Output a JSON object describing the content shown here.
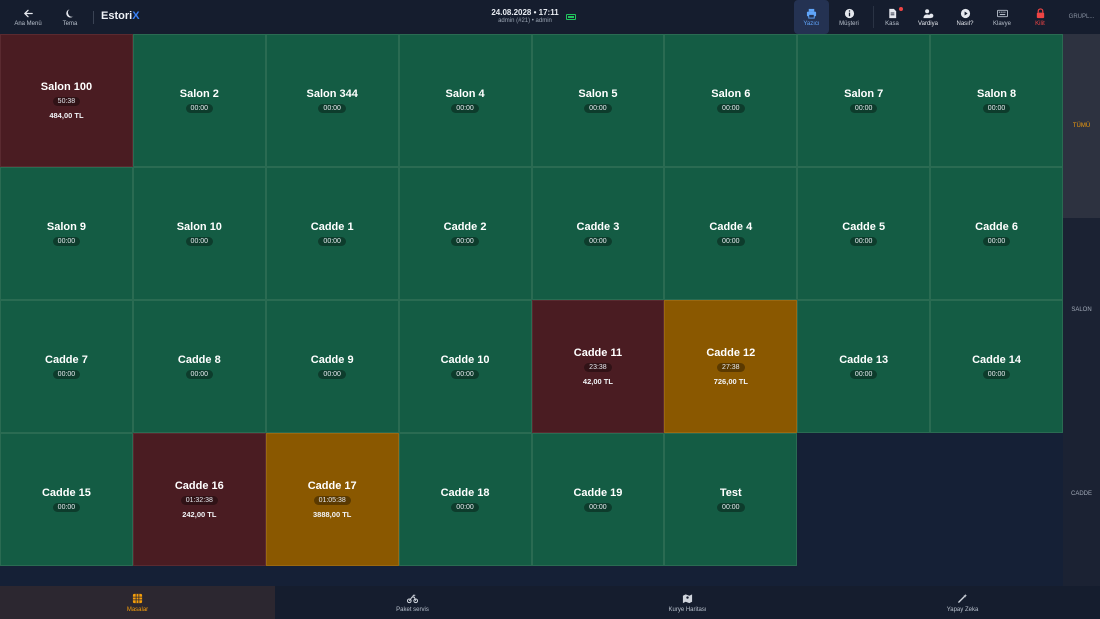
{
  "header": {
    "back_label": "Ana Menü",
    "theme_label": "Tema",
    "logo_main": "Estori",
    "logo_accent": "X",
    "datetime": "24.08.2028 • 17:11",
    "user": "admin (#21) • admin",
    "actions": {
      "yazici": "Yazıcı",
      "musteri": "Müşteri",
      "kasa": "Kasa",
      "vardiya": "Vardiya",
      "nasil": "Nasıl?",
      "klavye": "Klavye",
      "kilit": "Kilit"
    },
    "groups_label": "GRUPL..."
  },
  "tables": [
    {
      "name": "Salon 100",
      "time": "50:38",
      "amount": "484,00 TL",
      "status": "red"
    },
    {
      "name": "Salon 2",
      "time": "00:00",
      "status": "green"
    },
    {
      "name": "Salon 344",
      "time": "00:00",
      "status": "green"
    },
    {
      "name": "Salon 4",
      "time": "00:00",
      "status": "green"
    },
    {
      "name": "Salon 5",
      "time": "00:00",
      "status": "green"
    },
    {
      "name": "Salon 6",
      "time": "00:00",
      "status": "green"
    },
    {
      "name": "Salon 7",
      "time": "00:00",
      "status": "green"
    },
    {
      "name": "Salon 8",
      "time": "00:00",
      "status": "green"
    },
    {
      "name": "Salon 9",
      "time": "00:00",
      "status": "green"
    },
    {
      "name": "Salon 10",
      "time": "00:00",
      "status": "green"
    },
    {
      "name": "Cadde 1",
      "time": "00:00",
      "status": "green"
    },
    {
      "name": "Cadde 2",
      "time": "00:00",
      "status": "green"
    },
    {
      "name": "Cadde 3",
      "time": "00:00",
      "status": "green"
    },
    {
      "name": "Cadde 4",
      "time": "00:00",
      "status": "green"
    },
    {
      "name": "Cadde 5",
      "time": "00:00",
      "status": "green"
    },
    {
      "name": "Cadde 6",
      "time": "00:00",
      "status": "green"
    },
    {
      "name": "Cadde 7",
      "time": "00:00",
      "status": "green"
    },
    {
      "name": "Cadde 8",
      "time": "00:00",
      "status": "green"
    },
    {
      "name": "Cadde 9",
      "time": "00:00",
      "status": "green"
    },
    {
      "name": "Cadde 10",
      "time": "00:00",
      "status": "green"
    },
    {
      "name": "Cadde 11",
      "time": "23:38",
      "amount": "42,00 TL",
      "status": "red"
    },
    {
      "name": "Cadde 12",
      "time": "27:38",
      "amount": "726,00 TL",
      "status": "orange"
    },
    {
      "name": "Cadde 13",
      "time": "00:00",
      "status": "green"
    },
    {
      "name": "Cadde 14",
      "time": "00:00",
      "status": "green"
    },
    {
      "name": "Cadde 15",
      "time": "00:00",
      "status": "green"
    },
    {
      "name": "Cadde 16",
      "time": "01:32:38",
      "amount": "242,00 TL",
      "status": "red"
    },
    {
      "name": "Cadde 17",
      "time": "01:05:38",
      "amount": "3888,00 TL",
      "status": "orange"
    },
    {
      "name": "Cadde 18",
      "time": "00:00",
      "status": "green"
    },
    {
      "name": "Cadde 19",
      "time": "00:00",
      "status": "green"
    },
    {
      "name": "Test",
      "time": "00:00",
      "status": "green"
    }
  ],
  "sidebar": {
    "items": [
      "TÜMÜ",
      "SALON",
      "CADDE"
    ],
    "active": "TÜMÜ"
  },
  "bottom_nav": {
    "items": [
      "Masalar",
      "Paket servis",
      "Kurye Haritası",
      "Yapay Zeka"
    ],
    "active": "Masalar"
  },
  "colors": {
    "free": "#145c44",
    "occupied": "#4a1c22",
    "pending": "#8a5800",
    "accent": "#f59e0b",
    "brand": "#3b82f6"
  },
  "icons": {
    "back": "arrow-left-icon",
    "theme": "moon-icon",
    "printer": "printer-icon",
    "customer": "info-icon",
    "cash": "document-icon",
    "shift": "users-icon",
    "help": "play-icon",
    "keyboard": "keyboard-icon",
    "lock": "lock-icon",
    "tables": "grid-icon",
    "delivery": "motorcycle-icon",
    "map": "map-icon",
    "ai": "magic-wand-icon"
  }
}
